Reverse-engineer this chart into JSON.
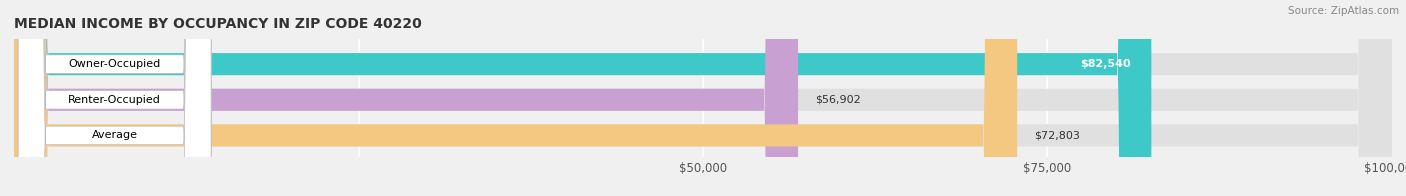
{
  "title": "MEDIAN INCOME BY OCCUPANCY IN ZIP CODE 40220",
  "source": "Source: ZipAtlas.com",
  "categories": [
    "Owner-Occupied",
    "Renter-Occupied",
    "Average"
  ],
  "values": [
    82540,
    56902,
    72803
  ],
  "bar_colors": [
    "#3ec8c8",
    "#c8a0d2",
    "#f5c882"
  ],
  "value_labels": [
    "$82,540",
    "$56,902",
    "$72,803"
  ],
  "xlim": [
    0,
    100000
  ],
  "background_color": "#f0f0f0",
  "bar_background_color": "#e0e0e0",
  "figsize": [
    14.06,
    1.96
  ],
  "dpi": 100
}
